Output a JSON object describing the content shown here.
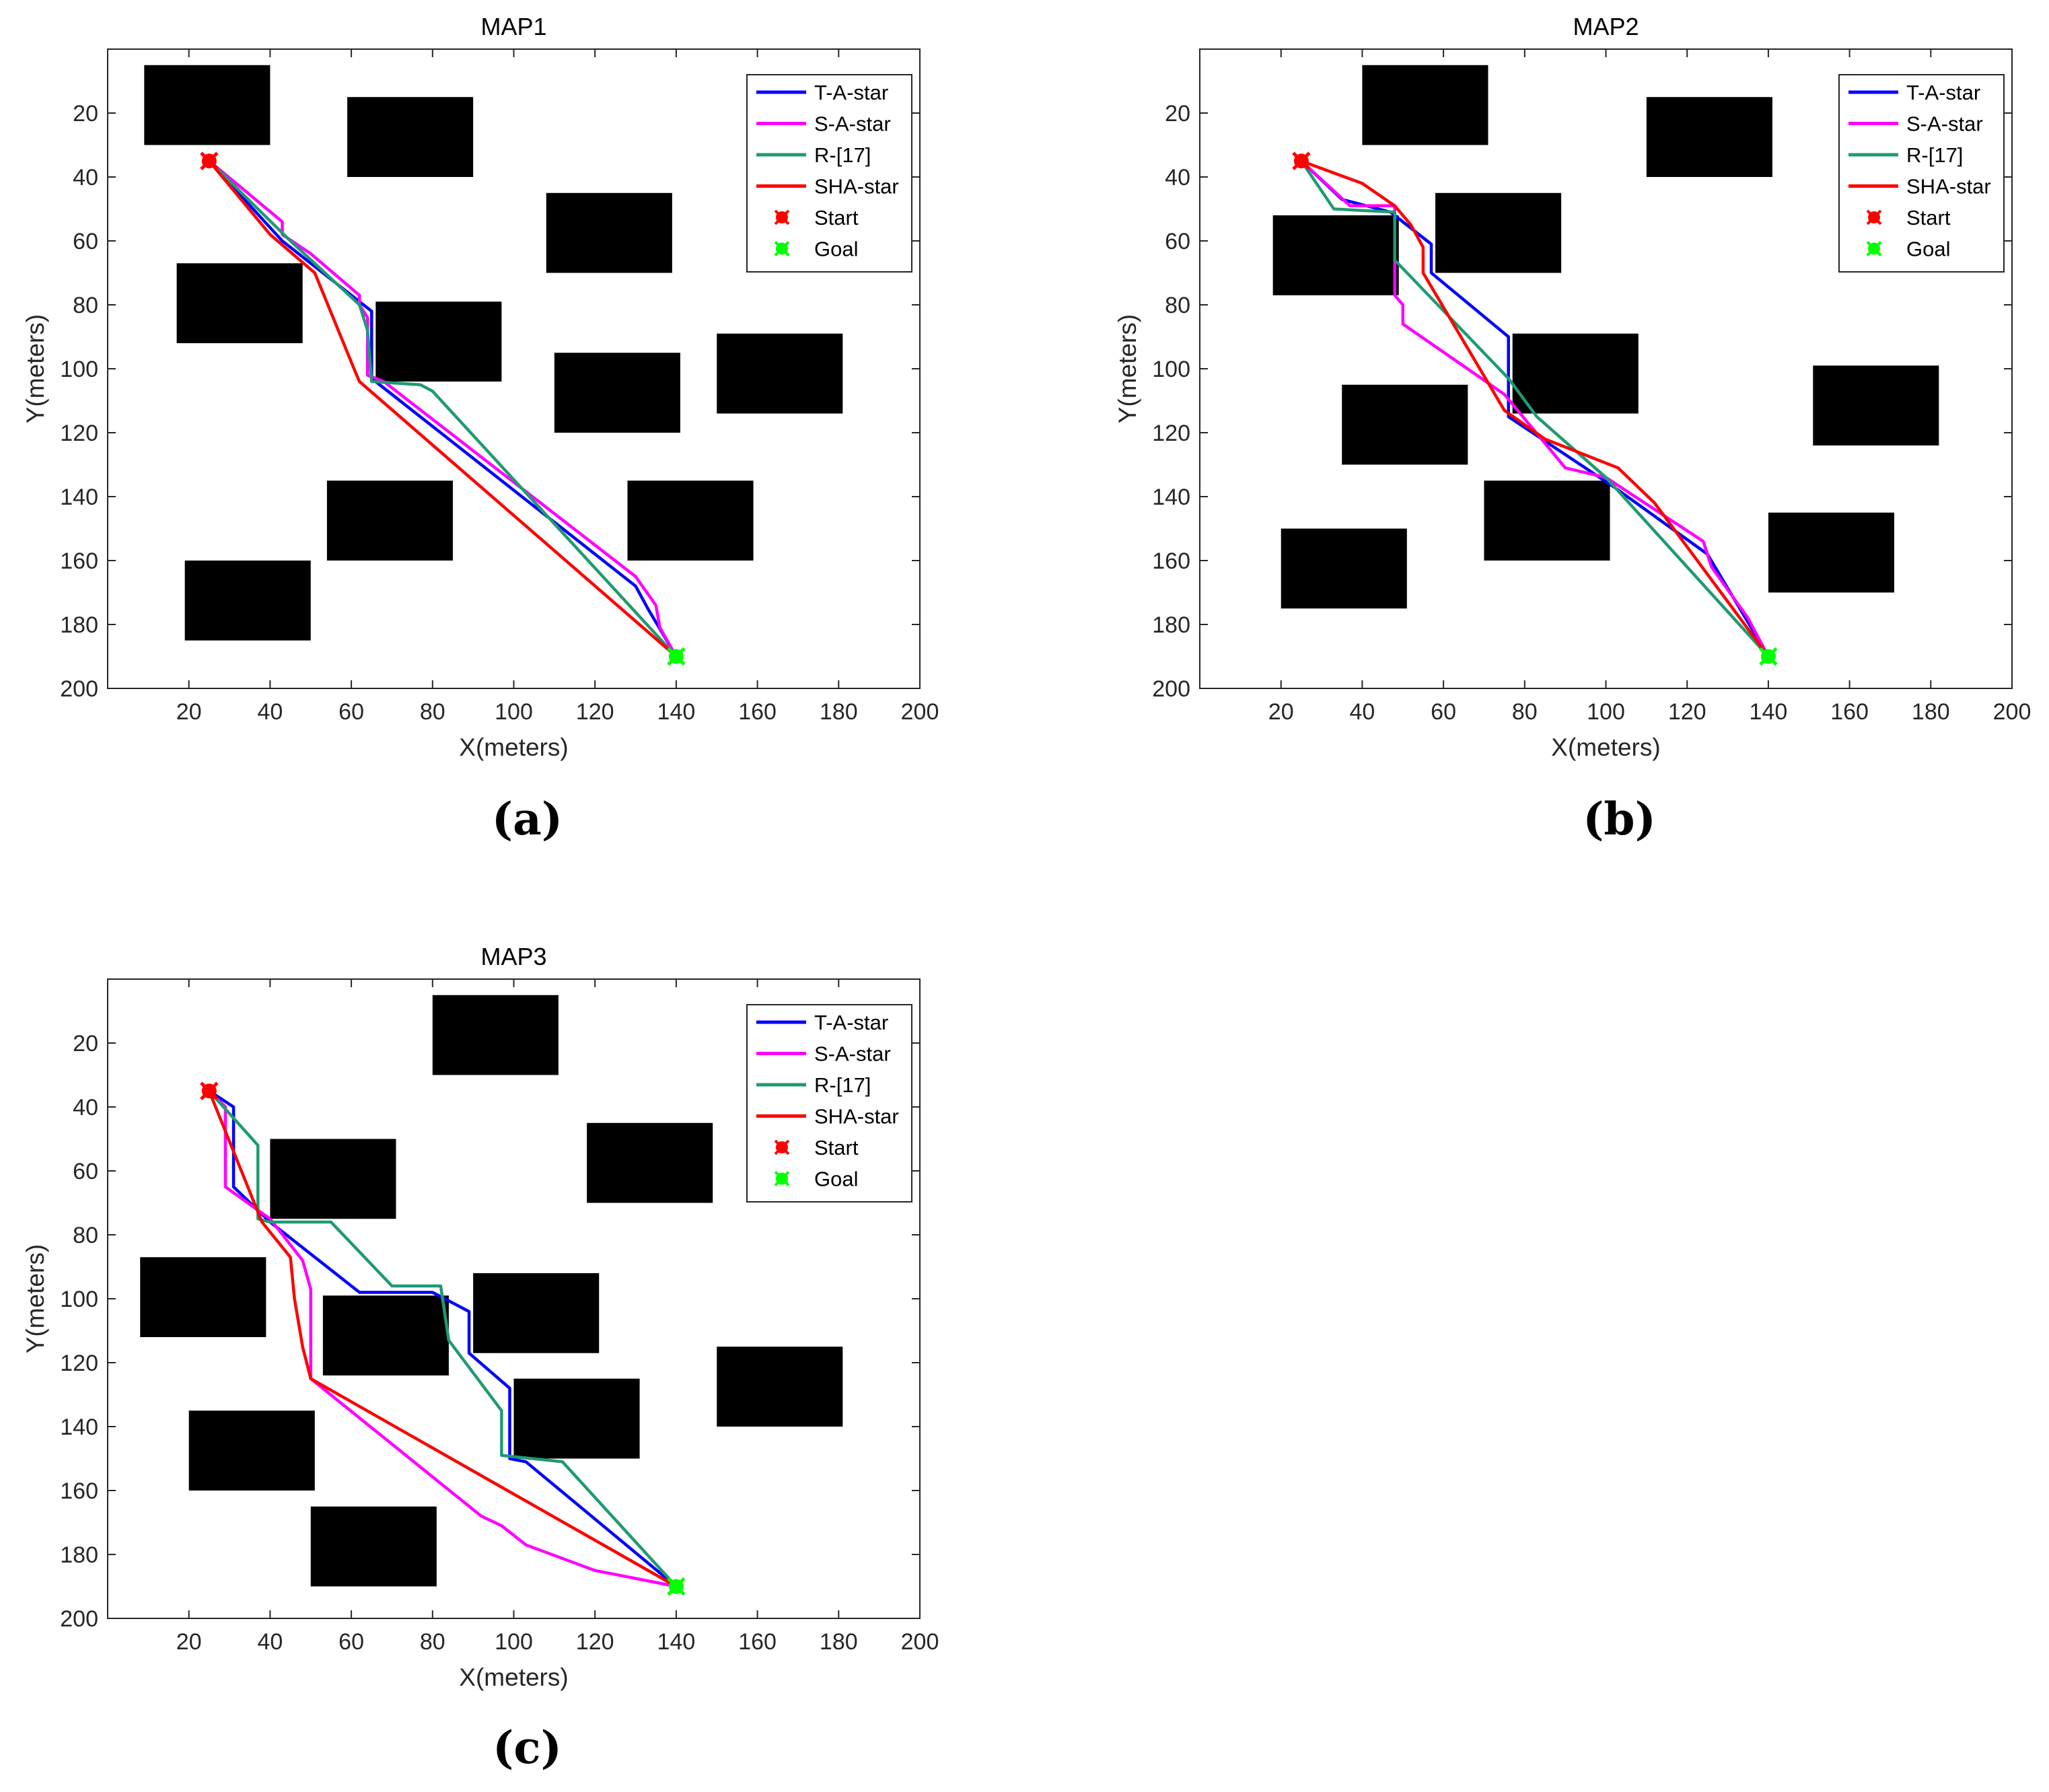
{
  "figure": {
    "panels": [
      "(a)",
      "(b)",
      "(c)"
    ]
  },
  "colors": {
    "T-A-star": "#0000ff",
    "S-A-star": "#ff00ff",
    "R-[17]": "#1f9a73",
    "SHA-star": "#ff0000",
    "Start": "#ff0000",
    "Goal": "#00ff00",
    "obstacle": "#000000"
  },
  "chart_data": [
    {
      "type": "line",
      "title": "MAP1",
      "panel_label": "(a)",
      "xlabel": "X(meters)",
      "ylabel": "Y(meters)",
      "xlim": [
        0,
        200
      ],
      "ylim": [
        200,
        0
      ],
      "y_reversed": true,
      "xticks": [
        20,
        40,
        60,
        80,
        100,
        120,
        140,
        160,
        180,
        200
      ],
      "yticks": [
        20,
        40,
        60,
        80,
        100,
        120,
        140,
        160,
        180,
        200
      ],
      "legend": [
        "T-A-star",
        "S-A-star",
        "R-[17]",
        "SHA-star",
        "Start",
        "Goal"
      ],
      "legend_position": "top-right",
      "start": [
        25,
        35
      ],
      "goal": [
        140,
        190
      ],
      "obstacles": [
        {
          "x0": 9,
          "y0": 5,
          "x1": 40,
          "y1": 30
        },
        {
          "x0": 59,
          "y0": 15,
          "x1": 90,
          "y1": 40
        },
        {
          "x0": 108,
          "y0": 45,
          "x1": 139,
          "y1": 70
        },
        {
          "x0": 17,
          "y0": 67,
          "x1": 48,
          "y1": 92
        },
        {
          "x0": 66,
          "y0": 79,
          "x1": 97,
          "y1": 104
        },
        {
          "x0": 110,
          "y0": 95,
          "x1": 141,
          "y1": 120
        },
        {
          "x0": 150,
          "y0": 89,
          "x1": 181,
          "y1": 114
        },
        {
          "x0": 54,
          "y0": 135,
          "x1": 85,
          "y1": 160
        },
        {
          "x0": 128,
          "y0": 135,
          "x1": 159,
          "y1": 160
        },
        {
          "x0": 19,
          "y0": 160,
          "x1": 50,
          "y1": 185
        }
      ],
      "series": [
        {
          "name": "T-A-star",
          "x": [
            25,
            43,
            55,
            65,
            65,
            67,
            130,
            133,
            140
          ],
          "y": [
            35,
            60,
            72,
            82,
            103,
            105,
            168,
            175,
            190
          ]
        },
        {
          "name": "S-A-star",
          "x": [
            25,
            43,
            43,
            50,
            62,
            62,
            64,
            64,
            68,
            130,
            135,
            136,
            140
          ],
          "y": [
            35,
            54,
            58,
            64,
            77,
            80,
            84,
            102,
            104,
            165,
            174,
            181,
            190
          ]
        },
        {
          "name": "R-[17]",
          "x": [
            25,
            45,
            62,
            64,
            65,
            77,
            80,
            140
          ],
          "y": [
            35,
            60,
            80,
            88,
            104,
            105,
            107,
            190
          ]
        },
        {
          "name": "SHA-star",
          "x": [
            25,
            40,
            51,
            61,
            62,
            140
          ],
          "y": [
            35,
            58,
            70,
            101,
            104,
            190
          ]
        }
      ]
    },
    {
      "type": "line",
      "title": "MAP2",
      "panel_label": "(b)",
      "xlabel": "X(meters)",
      "ylabel": "Y(meters)",
      "xlim": [
        0,
        200
      ],
      "ylim": [
        200,
        0
      ],
      "y_reversed": true,
      "xticks": [
        20,
        40,
        60,
        80,
        100,
        120,
        140,
        160,
        180,
        200
      ],
      "yticks": [
        20,
        40,
        60,
        80,
        100,
        120,
        140,
        160,
        180,
        200
      ],
      "legend": [
        "T-A-star",
        "S-A-star",
        "R-[17]",
        "SHA-star",
        "Start",
        "Goal"
      ],
      "legend_position": "top-right",
      "start": [
        25,
        35
      ],
      "goal": [
        140,
        190
      ],
      "obstacles": [
        {
          "x0": 40,
          "y0": 5,
          "x1": 71,
          "y1": 30
        },
        {
          "x0": 110,
          "y0": 15,
          "x1": 141,
          "y1": 40
        },
        {
          "x0": 58,
          "y0": 45,
          "x1": 89,
          "y1": 70
        },
        {
          "x0": 18,
          "y0": 52,
          "x1": 49,
          "y1": 77
        },
        {
          "x0": 77,
          "y0": 89,
          "x1": 108,
          "y1": 114
        },
        {
          "x0": 151,
          "y0": 99,
          "x1": 182,
          "y1": 124
        },
        {
          "x0": 35,
          "y0": 105,
          "x1": 66,
          "y1": 130
        },
        {
          "x0": 70,
          "y0": 135,
          "x1": 101,
          "y1": 160
        },
        {
          "x0": 140,
          "y0": 145,
          "x1": 171,
          "y1": 170
        },
        {
          "x0": 20,
          "y0": 150,
          "x1": 51,
          "y1": 175
        }
      ],
      "series": [
        {
          "name": "T-A-star",
          "x": [
            25,
            35,
            47,
            57,
            57,
            76,
            76,
            102,
            125,
            140
          ],
          "y": [
            35,
            47,
            51,
            61,
            70,
            90,
            115,
            137,
            158,
            190
          ]
        },
        {
          "name": "S-A-star",
          "x": [
            25,
            37,
            48,
            48,
            50,
            50,
            75,
            90,
            100,
            124,
            126,
            135,
            140
          ],
          "y": [
            35,
            49,
            49,
            77,
            80,
            86,
            108,
            131,
            134,
            154,
            162,
            178,
            190
          ]
        },
        {
          "name": "R-[17]",
          "x": [
            25,
            33,
            48,
            48,
            76,
            83,
            100,
            140
          ],
          "y": [
            35,
            50,
            51,
            66,
            103,
            115,
            134,
            190
          ]
        },
        {
          "name": "SHA-star",
          "x": [
            25,
            40,
            48,
            52,
            55,
            55,
            75,
            85,
            103,
            112,
            140
          ],
          "y": [
            35,
            42,
            49,
            55,
            62,
            70,
            113,
            122,
            131,
            142,
            190
          ]
        }
      ]
    },
    {
      "type": "line",
      "title": "MAP3",
      "panel_label": "(c)",
      "xlabel": "X(meters)",
      "ylabel": "Y(meters)",
      "xlim": [
        0,
        200
      ],
      "ylim": [
        200,
        0
      ],
      "y_reversed": true,
      "xticks": [
        20,
        40,
        60,
        80,
        100,
        120,
        140,
        160,
        180,
        200
      ],
      "yticks": [
        20,
        40,
        60,
        80,
        100,
        120,
        140,
        160,
        180,
        200
      ],
      "legend": [
        "T-A-star",
        "S-A-star",
        "R-[17]",
        "SHA-star",
        "Start",
        "Goal"
      ],
      "legend_position": "top-right",
      "start": [
        25,
        35
      ],
      "goal": [
        140,
        190
      ],
      "obstacles": [
        {
          "x0": 80,
          "y0": 5,
          "x1": 111,
          "y1": 30
        },
        {
          "x0": 118,
          "y0": 45,
          "x1": 149,
          "y1": 70
        },
        {
          "x0": 40,
          "y0": 50,
          "x1": 71,
          "y1": 75
        },
        {
          "x0": 8,
          "y0": 87,
          "x1": 39,
          "y1": 112
        },
        {
          "x0": 90,
          "y0": 92,
          "x1": 121,
          "y1": 117
        },
        {
          "x0": 53,
          "y0": 99,
          "x1": 84,
          "y1": 124
        },
        {
          "x0": 150,
          "y0": 115,
          "x1": 181,
          "y1": 140
        },
        {
          "x0": 100,
          "y0": 125,
          "x1": 131,
          "y1": 150
        },
        {
          "x0": 20,
          "y0": 135,
          "x1": 51,
          "y1": 160
        },
        {
          "x0": 50,
          "y0": 165,
          "x1": 81,
          "y1": 190
        }
      ],
      "series": [
        {
          "name": "T-A-star",
          "x": [
            25,
            31,
            31,
            40,
            62,
            80,
            89,
            89,
            99,
            99,
            103,
            140
          ],
          "y": [
            35,
            40,
            65,
            76,
            98,
            98,
            104,
            117,
            128,
            150,
            151,
            190
          ]
        },
        {
          "name": "S-A-star",
          "x": [
            25,
            29,
            29,
            40,
            48,
            50,
            50,
            92,
            97,
            103,
            120,
            140
          ],
          "y": [
            35,
            40,
            65,
            75,
            88,
            97,
            125,
            168,
            171,
            177,
            185,
            190
          ]
        },
        {
          "name": "R-[17]",
          "x": [
            25,
            37,
            37,
            40,
            55,
            70,
            82,
            84,
            97,
            97,
            112,
            140
          ],
          "y": [
            35,
            52,
            75,
            76,
            76,
            96,
            96,
            113,
            135,
            149,
            151,
            190
          ]
        },
        {
          "name": "SHA-star",
          "x": [
            25,
            38,
            45,
            46,
            48,
            50,
            140
          ],
          "y": [
            35,
            76,
            87,
            100,
            115,
            125,
            190
          ]
        }
      ]
    }
  ]
}
